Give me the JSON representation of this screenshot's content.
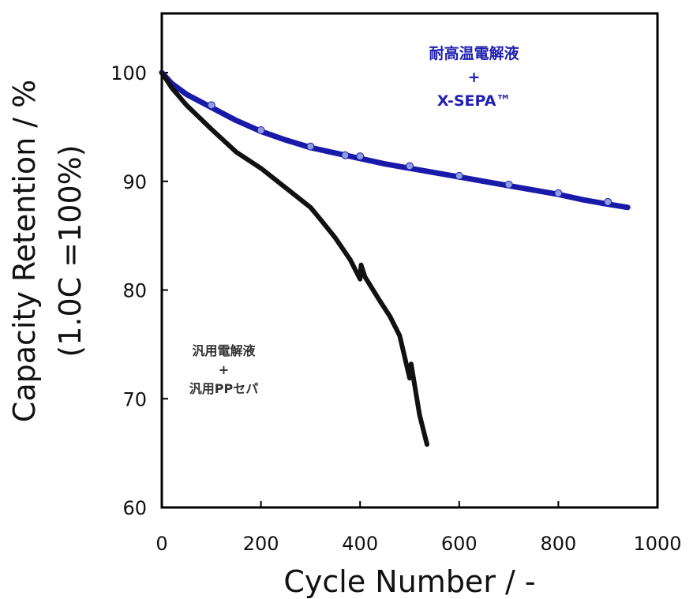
{
  "chart_data": {
    "type": "line",
    "title": "",
    "xlabel": "Cycle Number / -",
    "ylabel_line1": "Capacity Retention / %",
    "ylabel_line2": "(1.0C =100%)",
    "xlim": [
      0,
      1000
    ],
    "ylim": [
      60,
      105
    ],
    "x_ticks": [
      0,
      200,
      400,
      600,
      800,
      1000
    ],
    "y_ticks": [
      60,
      70,
      80,
      90,
      100
    ],
    "x_tick_labels": [
      "0",
      "200",
      "400",
      "600",
      "800",
      "1000"
    ],
    "y_tick_labels": [
      "60",
      "70",
      "80",
      "90",
      "100"
    ],
    "grid": false,
    "series": [
      {
        "name": "耐高温電解液 + X-SEPA™",
        "color": "#1a1aaa",
        "marker_color": "#8e9ee0",
        "x": [
          0,
          20,
          50,
          100,
          150,
          200,
          250,
          300,
          350,
          400,
          450,
          500,
          550,
          600,
          650,
          700,
          750,
          800,
          850,
          900,
          940
        ],
        "y": [
          100.0,
          99.0,
          98.0,
          96.8,
          95.6,
          94.6,
          93.8,
          93.1,
          92.6,
          92.1,
          91.6,
          91.2,
          90.8,
          90.4,
          90.0,
          89.6,
          89.2,
          88.8,
          88.3,
          87.9,
          87.6
        ],
        "marker_x": [
          100,
          200,
          300,
          370,
          400,
          500,
          600,
          700,
          800,
          900
        ],
        "marker_y": [
          97.0,
          94.7,
          93.2,
          92.4,
          92.3,
          91.4,
          90.5,
          89.7,
          88.9,
          88.1
        ]
      },
      {
        "name": "汎用電解液 + 汎用PPセパ",
        "color": "#111111",
        "x": [
          0,
          20,
          50,
          100,
          150,
          200,
          250,
          300,
          320,
          350,
          380,
          400,
          402,
          410,
          440,
          460,
          480,
          500,
          503,
          520,
          535
        ],
        "y": [
          100.0,
          98.6,
          97.0,
          94.8,
          92.7,
          91.2,
          89.4,
          87.6,
          86.5,
          84.8,
          82.8,
          81.0,
          82.3,
          81.2,
          79.0,
          77.6,
          75.8,
          71.9,
          73.2,
          68.5,
          65.8
        ]
      }
    ],
    "annotations": [
      {
        "series": 0,
        "lines": [
          "耐高温電解液",
          "+",
          "X-SEPA™"
        ],
        "x": 630,
        "y": 101.3
      },
      {
        "series": 1,
        "lines": [
          "汎用電解液",
          "+",
          "汎用PPセパ"
        ],
        "x": 125,
        "y": 74.0
      }
    ]
  }
}
